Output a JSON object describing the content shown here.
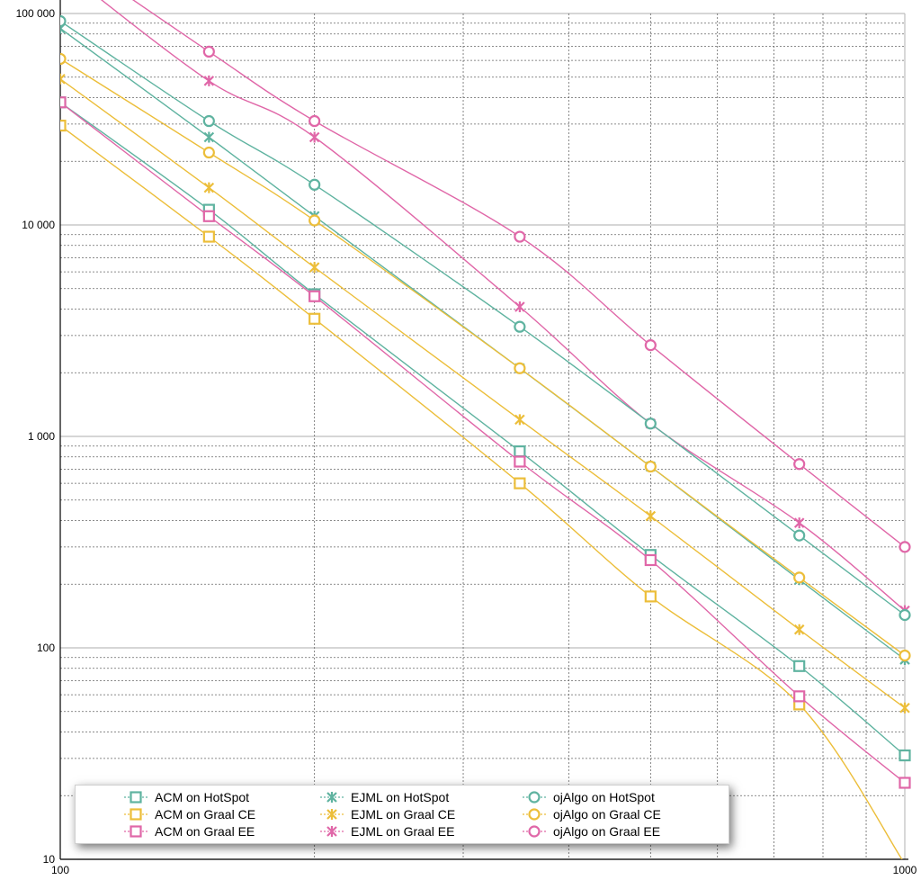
{
  "chart_data": {
    "type": "line",
    "xscale": "log",
    "yscale": "log",
    "xlim": [
      100,
      1000
    ],
    "ylim": [
      10,
      100000
    ],
    "grid": true,
    "legend_position": "bottom-left",
    "x_tick_labels": [
      {
        "value": 100,
        "label": "100"
      },
      {
        "value": 1000,
        "label": "1000"
      }
    ],
    "y_tick_labels": [
      {
        "value": 10,
        "label": "10"
      },
      {
        "value": 100,
        "label": "100"
      },
      {
        "value": 1000,
        "label": "1 000"
      },
      {
        "value": 10000,
        "label": "10 000"
      },
      {
        "value": 100000,
        "label": "100 000"
      }
    ],
    "x": [
      100,
      150,
      200,
      350,
      500,
      750,
      1000
    ],
    "series": [
      {
        "name": "ACM on HotSpot",
        "color": "#5fb3a0",
        "marker": "square",
        "values": [
          38000,
          11800,
          4700,
          850,
          275,
          82,
          31
        ]
      },
      {
        "name": "ACM on Graal CE",
        "color": "#ecbe3a",
        "marker": "square",
        "values": [
          29500,
          8800,
          3600,
          600,
          175,
          54,
          9.5
        ]
      },
      {
        "name": "ACM on Graal EE",
        "color": "#e067a8",
        "marker": "square",
        "values": [
          38000,
          11000,
          4600,
          760,
          260,
          59,
          23
        ]
      },
      {
        "name": "EJML on HotSpot",
        "color": "#5fb3a0",
        "marker": "x",
        "values": [
          85000,
          26000,
          11000,
          2100,
          720,
          210,
          88
        ]
      },
      {
        "name": "EJML on Graal CE",
        "color": "#ecbe3a",
        "marker": "x",
        "values": [
          49000,
          15000,
          6300,
          1200,
          420,
          122,
          52
        ]
      },
      {
        "name": "EJML on Graal EE",
        "color": "#e067a8",
        "marker": "x",
        "values": [
          165000,
          48000,
          26000,
          4100,
          1150,
          390,
          150
        ]
      },
      {
        "name": "ojAlgo on HotSpot",
        "color": "#5fb3a0",
        "marker": "circle",
        "values": [
          92000,
          31000,
          15500,
          3300,
          1150,
          340,
          143
        ]
      },
      {
        "name": "ojAlgo on Graal CE",
        "color": "#ecbe3a",
        "marker": "circle",
        "values": [
          61000,
          22000,
          10500,
          2100,
          720,
          215,
          92
        ]
      },
      {
        "name": "ojAlgo on Graal EE",
        "color": "#e067a8",
        "marker": "circle",
        "values": [
          200000,
          66000,
          31000,
          8800,
          2700,
          740,
          300
        ]
      }
    ]
  }
}
